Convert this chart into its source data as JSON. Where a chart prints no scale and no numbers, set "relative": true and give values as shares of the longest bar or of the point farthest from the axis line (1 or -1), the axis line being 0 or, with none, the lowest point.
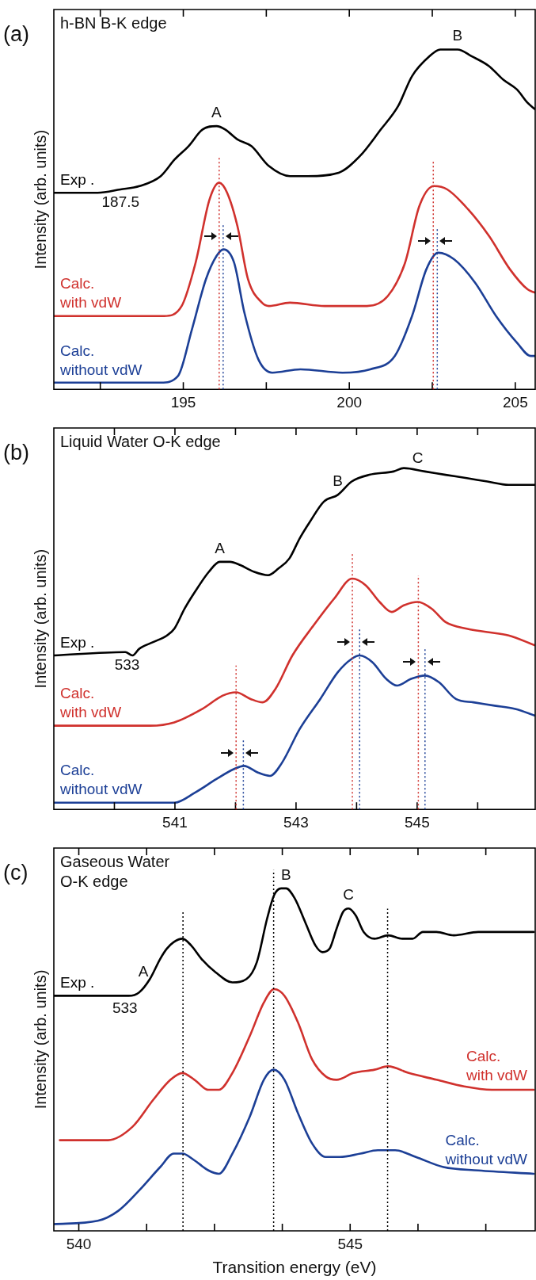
{
  "chart_data": [
    {
      "type": "line",
      "title": "h-BN B-K edge",
      "ylabel": "Intensity (arb. units)",
      "relative": true,
      "xlim": [
        191.1,
        205.6
      ],
      "xticks": [
        {
          "value": 192.5,
          "label": null
        },
        195,
        {
          "value": 197.5,
          "label": null
        },
        200,
        {
          "value": 202.5,
          "label": null
        },
        205
      ],
      "grid": false,
      "marker": "none",
      "line_style": "solid",
      "series": [
        {
          "name": "Exp .",
          "color": "#000000",
          "x": [
            191.1,
            192.42,
            193.11,
            193.68,
            194.32,
            194.74,
            195.16,
            195.58,
            196.0,
            196.26,
            196.63,
            197.05,
            197.58,
            198.21,
            198.74,
            199.68,
            200.32,
            200.95,
            201.47,
            201.89,
            202.42,
            202.74,
            203.26,
            203.68,
            204.21,
            204.63,
            205.05,
            205.37,
            205.6
          ],
          "values": [
            0.57,
            0.57,
            0.58,
            0.59,
            0.62,
            0.67,
            0.71,
            0.76,
            0.77,
            0.76,
            0.73,
            0.71,
            0.65,
            0.62,
            0.62,
            0.63,
            0.68,
            0.76,
            0.83,
            0.92,
            0.98,
            1.0,
            1.0,
            0.98,
            0.95,
            0.91,
            0.88,
            0.84,
            0.82
          ]
        },
        {
          "name": "Calc.\nwith vdW",
          "color": "#d0312d",
          "x": [
            191.1,
            194.42,
            194.95,
            195.37,
            195.79,
            196.08,
            196.32,
            196.63,
            196.95,
            197.37,
            197.58,
            198.21,
            199.26,
            200.53,
            201.16,
            201.68,
            202.11,
            202.55,
            202.95,
            203.58,
            204.21,
            204.84,
            205.37,
            205.6
          ],
          "values": [
            0.2,
            0.2,
            0.23,
            0.36,
            0.55,
            0.6,
            0.57,
            0.47,
            0.31,
            0.24,
            0.23,
            0.24,
            0.23,
            0.23,
            0.26,
            0.36,
            0.53,
            0.59,
            0.58,
            0.52,
            0.44,
            0.34,
            0.28,
            0.27
          ]
        },
        {
          "name": "Calc.\nwithout vdW",
          "color": "#1c3f96",
          "x": [
            191.1,
            194.32,
            194.84,
            195.26,
            195.68,
            196.0,
            196.21,
            196.53,
            196.84,
            197.26,
            197.68,
            198.53,
            199.79,
            200.63,
            201.37,
            201.89,
            202.32,
            202.68,
            203.16,
            203.79,
            204.42,
            205.05,
            205.47,
            205.6
          ],
          "values": [
            0.0,
            0.0,
            0.02,
            0.16,
            0.31,
            0.38,
            0.4,
            0.36,
            0.21,
            0.07,
            0.03,
            0.04,
            0.03,
            0.04,
            0.08,
            0.2,
            0.34,
            0.39,
            0.37,
            0.3,
            0.2,
            0.12,
            0.08,
            0.08
          ]
        }
      ],
      "ref_lines": [
        {
          "axis": "x",
          "value": 196.08,
          "color": "#d0312d",
          "line_style": "dotted"
        },
        {
          "axis": "x",
          "value": 196.2,
          "color": "#1c3f96",
          "line_style": "dotted"
        },
        {
          "axis": "x",
          "value": 202.53,
          "color": "#d0312d",
          "line_style": "dotted"
        },
        {
          "axis": "x",
          "value": 202.65,
          "color": "#1c3f96",
          "line_style": "dotted"
        }
      ],
      "annotations": [
        "(a)",
        {
          "text": "A",
          "x": 196.0,
          "y": 0.77
        },
        {
          "text": "B",
          "x": 203.26,
          "y": 1.0
        },
        {
          "text": "187.5",
          "x": 193.11,
          "y": 0.58
        }
      ]
    },
    {
      "type": "line",
      "title": "Liquid Water O-K edge",
      "ylabel": "Intensity (arb. units)",
      "relative": true,
      "xlim": [
        539.0,
        546.95
      ],
      "xticks": [
        {
          "value": 540,
          "label": null
        },
        541,
        {
          "value": 542,
          "label": null
        },
        543,
        {
          "value": 544,
          "label": null
        },
        545,
        {
          "value": 546,
          "label": null
        }
      ],
      "grid": false,
      "marker": "none",
      "line_style": "solid",
      "series": [
        {
          "name": "Exp .",
          "color": "#000000",
          "x": [
            539.0,
            540.18,
            540.3,
            540.41,
            540.64,
            540.87,
            540.99,
            541.16,
            541.33,
            541.56,
            541.74,
            541.91,
            542.08,
            542.31,
            542.54,
            542.71,
            542.89,
            543.06,
            543.23,
            543.46,
            543.69,
            543.92,
            544.21,
            544.61,
            544.78,
            545.13,
            545.47,
            545.82,
            546.16,
            546.51,
            546.95
          ],
          "values": [
            0.44,
            0.45,
            0.44,
            0.46,
            0.48,
            0.5,
            0.52,
            0.58,
            0.63,
            0.69,
            0.72,
            0.72,
            0.71,
            0.69,
            0.68,
            0.7,
            0.73,
            0.79,
            0.84,
            0.9,
            0.92,
            0.96,
            0.98,
            0.99,
            1.0,
            0.99,
            0.98,
            0.97,
            0.96,
            0.95,
            0.95
          ]
        },
        {
          "name": "Calc.\nwith vdW",
          "color": "#d0312d",
          "x": [
            539.0,
            540.59,
            540.99,
            541.45,
            541.79,
            542.01,
            542.25,
            542.45,
            542.66,
            542.94,
            543.29,
            543.63,
            543.93,
            544.15,
            544.38,
            544.58,
            544.78,
            545.01,
            545.24,
            545.47,
            545.82,
            546.16,
            546.51,
            546.95
          ],
          "values": [
            0.23,
            0.23,
            0.24,
            0.28,
            0.32,
            0.33,
            0.31,
            0.3,
            0.34,
            0.44,
            0.53,
            0.61,
            0.67,
            0.65,
            0.6,
            0.57,
            0.59,
            0.6,
            0.58,
            0.54,
            0.52,
            0.51,
            0.5,
            0.47
          ]
        },
        {
          "name": "Calc.\nwithout vdW",
          "color": "#1c3f96",
          "x": [
            539.0,
            540.99,
            541.33,
            541.68,
            541.97,
            542.14,
            542.37,
            542.57,
            542.77,
            543.06,
            543.4,
            543.69,
            543.92,
            544.05,
            544.26,
            544.49,
            544.67,
            544.9,
            545.13,
            545.36,
            545.64,
            545.93,
            546.28,
            546.62,
            546.95
          ],
          "values": [
            0.0,
            0.0,
            0.03,
            0.07,
            0.1,
            0.11,
            0.09,
            0.08,
            0.12,
            0.22,
            0.31,
            0.39,
            0.43,
            0.44,
            0.42,
            0.37,
            0.35,
            0.37,
            0.38,
            0.36,
            0.31,
            0.3,
            0.29,
            0.28,
            0.26
          ]
        }
      ],
      "ref_lines": [
        {
          "axis": "x",
          "value": 542.01,
          "color": "#d0312d",
          "line_style": "dotted"
        },
        {
          "axis": "x",
          "value": 542.13,
          "color": "#1c3f96",
          "line_style": "dotted"
        },
        {
          "axis": "x",
          "value": 543.93,
          "color": "#d0312d",
          "line_style": "dotted"
        },
        {
          "axis": "x",
          "value": 544.05,
          "color": "#1c3f96",
          "line_style": "dotted"
        },
        {
          "axis": "x",
          "value": 545.02,
          "color": "#d0312d",
          "line_style": "dotted"
        },
        {
          "axis": "x",
          "value": 545.13,
          "color": "#1c3f96",
          "line_style": "dotted"
        }
      ],
      "annotations": [
        "(b)",
        {
          "text": "A",
          "x": 541.74,
          "y": 0.72
        },
        {
          "text": "B",
          "x": 543.69,
          "y": 0.92
        },
        {
          "text": "C",
          "x": 545.01,
          "y": 0.99
        },
        {
          "text": "533",
          "x": 540.21,
          "y": 0.45
        }
      ]
    },
    {
      "type": "line",
      "title": "Gaseous Water\nO-K edge",
      "xlabel": "Transition energy (eV)",
      "ylabel": "Intensity (arb. units)",
      "relative": true,
      "xlim": [
        539.54,
        548.41
      ],
      "xticks": [
        540,
        {
          "value": 541.25,
          "label": null
        },
        {
          "value": 542.5,
          "label": null
        },
        {
          "value": 543.75,
          "label": null
        },
        545,
        {
          "value": 546.25,
          "label": null
        },
        {
          "value": 547.5,
          "label": null
        }
      ],
      "grid": false,
      "marker": "none",
      "line_style": "solid",
      "series": [
        {
          "name": "Exp .",
          "color": "#000000",
          "x": [
            539.54,
            540.92,
            541.11,
            541.31,
            541.5,
            541.62,
            541.75,
            541.91,
            542.07,
            542.26,
            542.52,
            542.83,
            543.09,
            543.28,
            543.47,
            543.6,
            543.73,
            543.82,
            543.98,
            544.17,
            544.36,
            544.49,
            544.62,
            544.75,
            544.87,
            544.97,
            545.1,
            545.25,
            545.45,
            545.7,
            545.96,
            546.15,
            546.34,
            546.59,
            546.91,
            547.36,
            547.68,
            548.38
          ],
          "values": [
            0.68,
            0.68,
            0.69,
            0.73,
            0.79,
            0.82,
            0.84,
            0.85,
            0.83,
            0.79,
            0.75,
            0.72,
            0.73,
            0.78,
            0.91,
            0.98,
            1.0,
            1.0,
            0.97,
            0.9,
            0.83,
            0.81,
            0.82,
            0.88,
            0.93,
            0.94,
            0.92,
            0.87,
            0.85,
            0.86,
            0.85,
            0.85,
            0.87,
            0.87,
            0.86,
            0.87,
            0.87,
            0.87
          ]
        },
        {
          "name": "Calc.\nwith vdW",
          "color": "#d0312d",
          "x": [
            539.65,
            540.54,
            540.99,
            541.37,
            541.69,
            541.91,
            542.13,
            542.39,
            542.58,
            542.83,
            543.15,
            543.41,
            543.6,
            543.79,
            544.04,
            544.3,
            544.55,
            544.75,
            545.06,
            545.45,
            545.7,
            546.08,
            546.59,
            547.1,
            547.61,
            548.38
          ],
          "values": [
            0.25,
            0.25,
            0.29,
            0.37,
            0.43,
            0.45,
            0.43,
            0.4,
            0.4,
            0.45,
            0.56,
            0.66,
            0.7,
            0.68,
            0.6,
            0.49,
            0.44,
            0.43,
            0.45,
            0.46,
            0.47,
            0.45,
            0.43,
            0.41,
            0.4,
            0.4
          ]
        },
        {
          "name": "Calc.\nwithout vdW",
          "color": "#1c3f96",
          "x": [
            539.54,
            540.35,
            540.73,
            541.11,
            541.5,
            541.75,
            541.91,
            542.13,
            542.39,
            542.58,
            542.83,
            543.15,
            543.41,
            543.59,
            543.79,
            544.04,
            544.3,
            544.55,
            544.81,
            545.19,
            545.51,
            545.83,
            546.21,
            546.72,
            547.36,
            548.38
          ],
          "values": [
            0.0,
            0.01,
            0.04,
            0.1,
            0.17,
            0.21,
            0.21,
            0.19,
            0.16,
            0.15,
            0.21,
            0.32,
            0.43,
            0.46,
            0.43,
            0.33,
            0.24,
            0.2,
            0.2,
            0.21,
            0.22,
            0.22,
            0.2,
            0.17,
            0.16,
            0.15
          ]
        }
      ],
      "ref_lines": [
        {
          "axis": "x",
          "value": 541.92,
          "color": "#000000",
          "line_style": "dotted"
        },
        {
          "axis": "x",
          "value": 543.59,
          "color": "#000000",
          "line_style": "dotted"
        },
        {
          "axis": "x",
          "value": 545.69,
          "color": "#000000",
          "line_style": "dotted"
        }
      ],
      "annotations": [
        "(c)",
        {
          "text": "A",
          "x": 541.19,
          "y": 0.71
        },
        {
          "text": "B",
          "x": 543.82,
          "y": 1.0
        },
        {
          "text": "C",
          "x": 544.97,
          "y": 0.94
        },
        {
          "text": "533",
          "x": 540.85,
          "y": 0.68
        }
      ]
    }
  ]
}
